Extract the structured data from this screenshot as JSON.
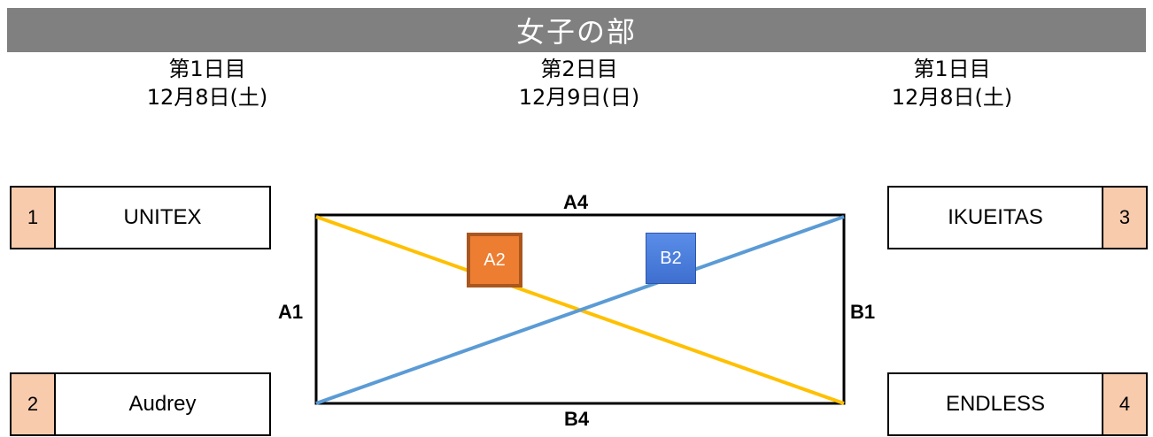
{
  "title": "女子の部",
  "days": [
    {
      "label": "第1日目",
      "date": "12月8日(土)"
    },
    {
      "label": "第2日目",
      "date": "12月9日(日)"
    },
    {
      "label": "第1日目",
      "date": "12月8日(土)"
    }
  ],
  "teams": [
    {
      "seed": "1",
      "name": "UNITEX"
    },
    {
      "seed": "2",
      "name": "Audrey"
    },
    {
      "seed": "3",
      "name": "IKUEITAS"
    },
    {
      "seed": "4",
      "name": "ENDLESS"
    }
  ],
  "match_labels": {
    "a1": "A1",
    "a4": "A4",
    "b1": "B1",
    "b4": "B4",
    "a2": "A2",
    "b2": "B2"
  },
  "colors": {
    "banner": "#808080",
    "seed_fill": "#f8cbad",
    "line_a": "#ffc000",
    "line_b": "#5b9bd5",
    "marker_a2": "#ed7d31",
    "marker_b2": "#4472c4"
  }
}
